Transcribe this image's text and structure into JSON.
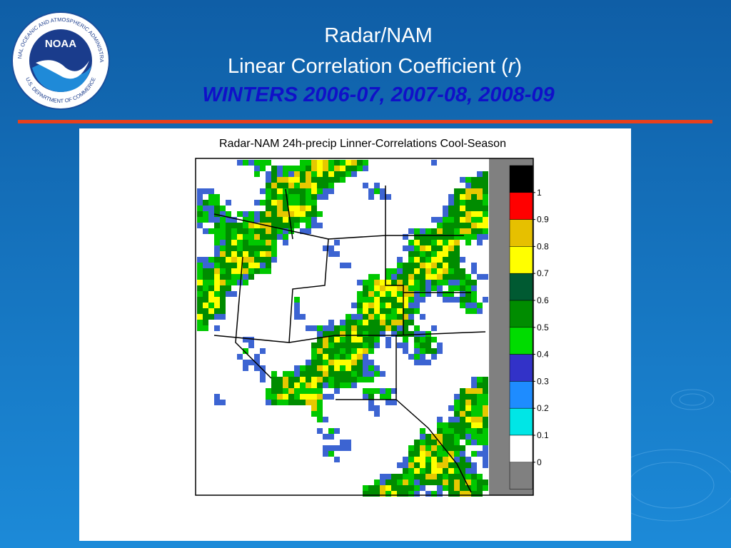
{
  "logo": {
    "acronym": "NOAA",
    "ring_top": "NATIONAL OCEANIC AND ATMOSPHERIC ADMINISTRATION",
    "ring_bottom": "U.S. DEPARTMENT OF COMMERCE"
  },
  "header": {
    "line1": "Radar/NAM",
    "line2_before": "Linear Correlation Coefficient (",
    "line2_italic": "r",
    "line2_after": ")",
    "line3": "WINTERS 2006-07, 2007-08, 2008-09"
  },
  "figure": {
    "title": "Radar-NAM 24h-precip  Linner-Correlations  Cool-Season",
    "colorbar": {
      "colors": [
        "#000000",
        "#ff0000",
        "#e6c000",
        "#ffff00",
        "#005a32",
        "#008c00",
        "#00dc00",
        "#3232c8",
        "#1e8cff",
        "#00e6e6",
        "#ffffff",
        "#808080"
      ],
      "labels": [
        "1",
        "0.9",
        "0.8",
        "0.7",
        "0.6",
        "0.5",
        "0.4",
        "0.3",
        "0.2",
        "0.1",
        "0"
      ]
    }
  }
}
